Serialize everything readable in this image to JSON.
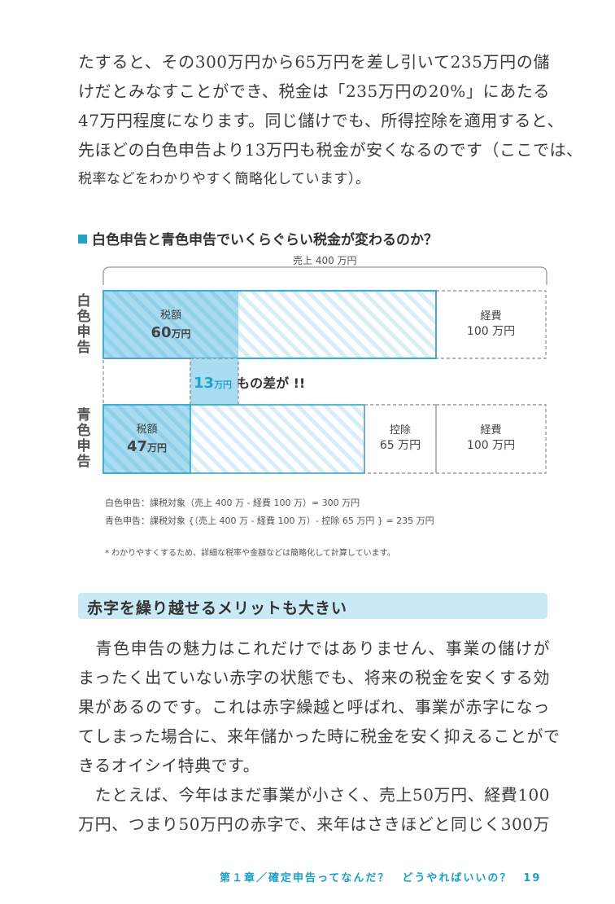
{
  "intro_lines": [
    "たすると、その300万円から65万円を差し引いて235万円の儲",
    "けだとみなすことができ、税金は「235万円の20%」にあたる",
    "47万円程度になります。同じ儲けでも、所得控除を適用すると、",
    "先ほどの白色申告より13万円も税金が安くなるのです（ここでは、",
    "税率などをわかりやすく簡略化しています）。"
  ],
  "chart": {
    "title": "白色申告と青色申告でいくらぐらい税金が変わるのか？",
    "bracket_label": "売上 400 万円",
    "white_row_label": "白色申告",
    "blue_row_label": "青色申告",
    "white_tax_label": "税額",
    "white_tax_value": "60",
    "white_tax_unit": "万円",
    "white_expense_label": "経費",
    "white_expense_value": "100 万円",
    "blue_tax_label": "税額",
    "blue_tax_value": "47",
    "blue_tax_unit": "万円",
    "blue_deduction_label": "控除",
    "blue_deduction_value": "65 万円",
    "blue_expense_label": "経費",
    "blue_expense_value": "100 万円",
    "diff_value": "13",
    "diff_unit": "万円",
    "diff_text": "もの差が !!",
    "formula_white": "白色申告：課税対象（売上 400 万 - 経費 100 万）= 300 万円",
    "formula_blue": "青色申告：課税対象 {（売上 400 万 - 経費 100 万）- 控除 65 万円 } = 235 万円",
    "footnote": "* わかりやすくするため、詳細な税率や金額などは簡略化して計算しています。"
  },
  "chart_data": {
    "type": "bar",
    "title": "白色申告と青色申告でいくらぐらい税金が変わるのか？",
    "categories": [
      "白色申告",
      "青色申告"
    ],
    "unit": "万円",
    "total_sales": 400,
    "series": [
      {
        "name": "税額",
        "values": [
          60,
          47
        ]
      },
      {
        "name": "控除",
        "values": [
          0,
          65
        ]
      },
      {
        "name": "経費",
        "values": [
          100,
          100
        ]
      }
    ],
    "difference": 13
  },
  "section_heading": "赤字を繰り越せるメリットも大きい",
  "body_lines": [
    "　青色申告の魅力はこれだけではありません、事業の儲けが",
    "まったく出ていない赤字の状態でも、将来の税金を安くする効",
    "果があるのです。これは赤字繰越と呼ばれ、事業が赤字になっ",
    "てしまった場合に、来年儲かった時に税金を安く抑えることがで",
    "きるオイシイ特典です。",
    "　たとえば、今年はまだ事業が小さく、売上50万円、経費100",
    "万円、つまり50万円の赤字で、来年はさきほどと同じく300万"
  ],
  "footer": {
    "chapter": "第１章／確定申告ってなんだ？　どうやればいいの？",
    "page_number": "19"
  },
  "colors": {
    "accent": "#1fa3c9",
    "tax_fill": "#a9dcf1",
    "stripe": "#d7eef8",
    "section_bg": "#c9e9f6"
  }
}
